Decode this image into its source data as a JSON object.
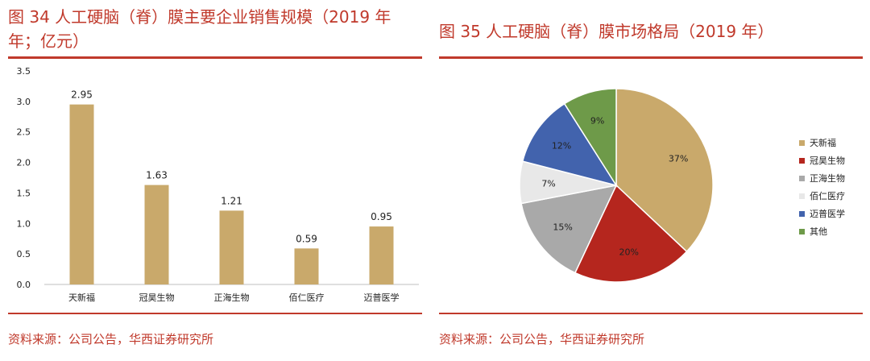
{
  "left": {
    "title_line1": "图 34 人工硬脑（脊）膜主要企业销售规模（2019 年",
    "title_line2": "年；亿元）",
    "source": "资料来源：公司公告，华西证券研究所"
  },
  "right": {
    "title": "图 35 人工硬脑（脊）膜市场格局（2019 年）",
    "source": "资料来源：公司公告，华西证券研究所"
  },
  "chart_data": [
    {
      "type": "bar",
      "title": "图 34 人工硬脑（脊）膜主要企业销售规模（2019 年年；亿元）",
      "categories": [
        "天新福",
        "冠昊生物",
        "正海生物",
        "佰仁医疗",
        "迈普医学"
      ],
      "values": [
        2.95,
        1.63,
        1.21,
        0.59,
        0.95
      ],
      "value_labels": [
        "2.95",
        "1.63",
        "1.21",
        "0.59",
        "0.95"
      ],
      "yticks": [
        "0.0",
        "0.5",
        "1.0",
        "1.5",
        "2.0",
        "2.5",
        "3.0",
        "3.5"
      ],
      "ylim": [
        0,
        3.5
      ],
      "grid": false,
      "bar_color": "#c9a96b"
    },
    {
      "type": "pie",
      "title": "图 35 人工硬脑（脊）膜市场格局（2019 年）",
      "labels": [
        "天新福",
        "冠昊生物",
        "正海生物",
        "佰仁医疗",
        "迈普医学",
        "其他"
      ],
      "values": [
        37,
        20,
        15,
        7,
        12,
        9
      ],
      "value_labels": [
        "37%",
        "20%",
        "15%",
        "7%",
        "12%",
        "9%"
      ],
      "colors": [
        "#c9a96b",
        "#b5261e",
        "#a9a9a9",
        "#e8e8e8",
        "#4263ad",
        "#6e9a49"
      ],
      "legend_position": "right"
    }
  ]
}
